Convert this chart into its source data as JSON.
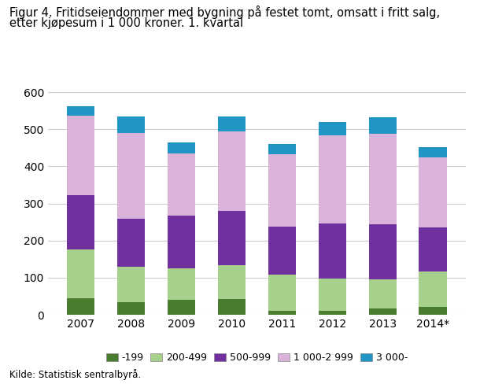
{
  "title_line1": "Figur 4. Fritidseiendommer med bygning på festet tomt, omsatt i fritt salg,",
  "title_line2": "etter kjøpesum i 1 000 kroner. 1. kvartal",
  "years": [
    "2007",
    "2008",
    "2009",
    "2010",
    "2011",
    "2012",
    "2013",
    "2014*"
  ],
  "series": {
    "-199": [
      45,
      35,
      40,
      43,
      10,
      10,
      18,
      22
    ],
    "200-499": [
      132,
      95,
      85,
      90,
      98,
      88,
      77,
      95
    ],
    "500-999": [
      145,
      130,
      142,
      148,
      130,
      148,
      150,
      118
    ],
    "1 000-2 999": [
      215,
      230,
      168,
      214,
      195,
      238,
      243,
      190
    ],
    "3 000-": [
      25,
      45,
      30,
      40,
      27,
      35,
      45,
      27
    ]
  },
  "colors": {
    "-199": "#4a7c2f",
    "200-499": "#a8d08d",
    "500-999": "#7030a0",
    "1 000-2 999": "#d9b3d9",
    "3 000-": "#2196c4"
  },
  "ylim": [
    0,
    600
  ],
  "yticks": [
    0,
    100,
    200,
    300,
    400,
    500,
    600
  ],
  "source": "Kilde: Statistisk sentralbyrå.",
  "bar_width": 0.55,
  "background_color": "#ffffff",
  "grid_color": "#cccccc",
  "title_fontsize": 10.5,
  "tick_fontsize": 10,
  "legend_fontsize": 9,
  "source_fontsize": 8.5
}
